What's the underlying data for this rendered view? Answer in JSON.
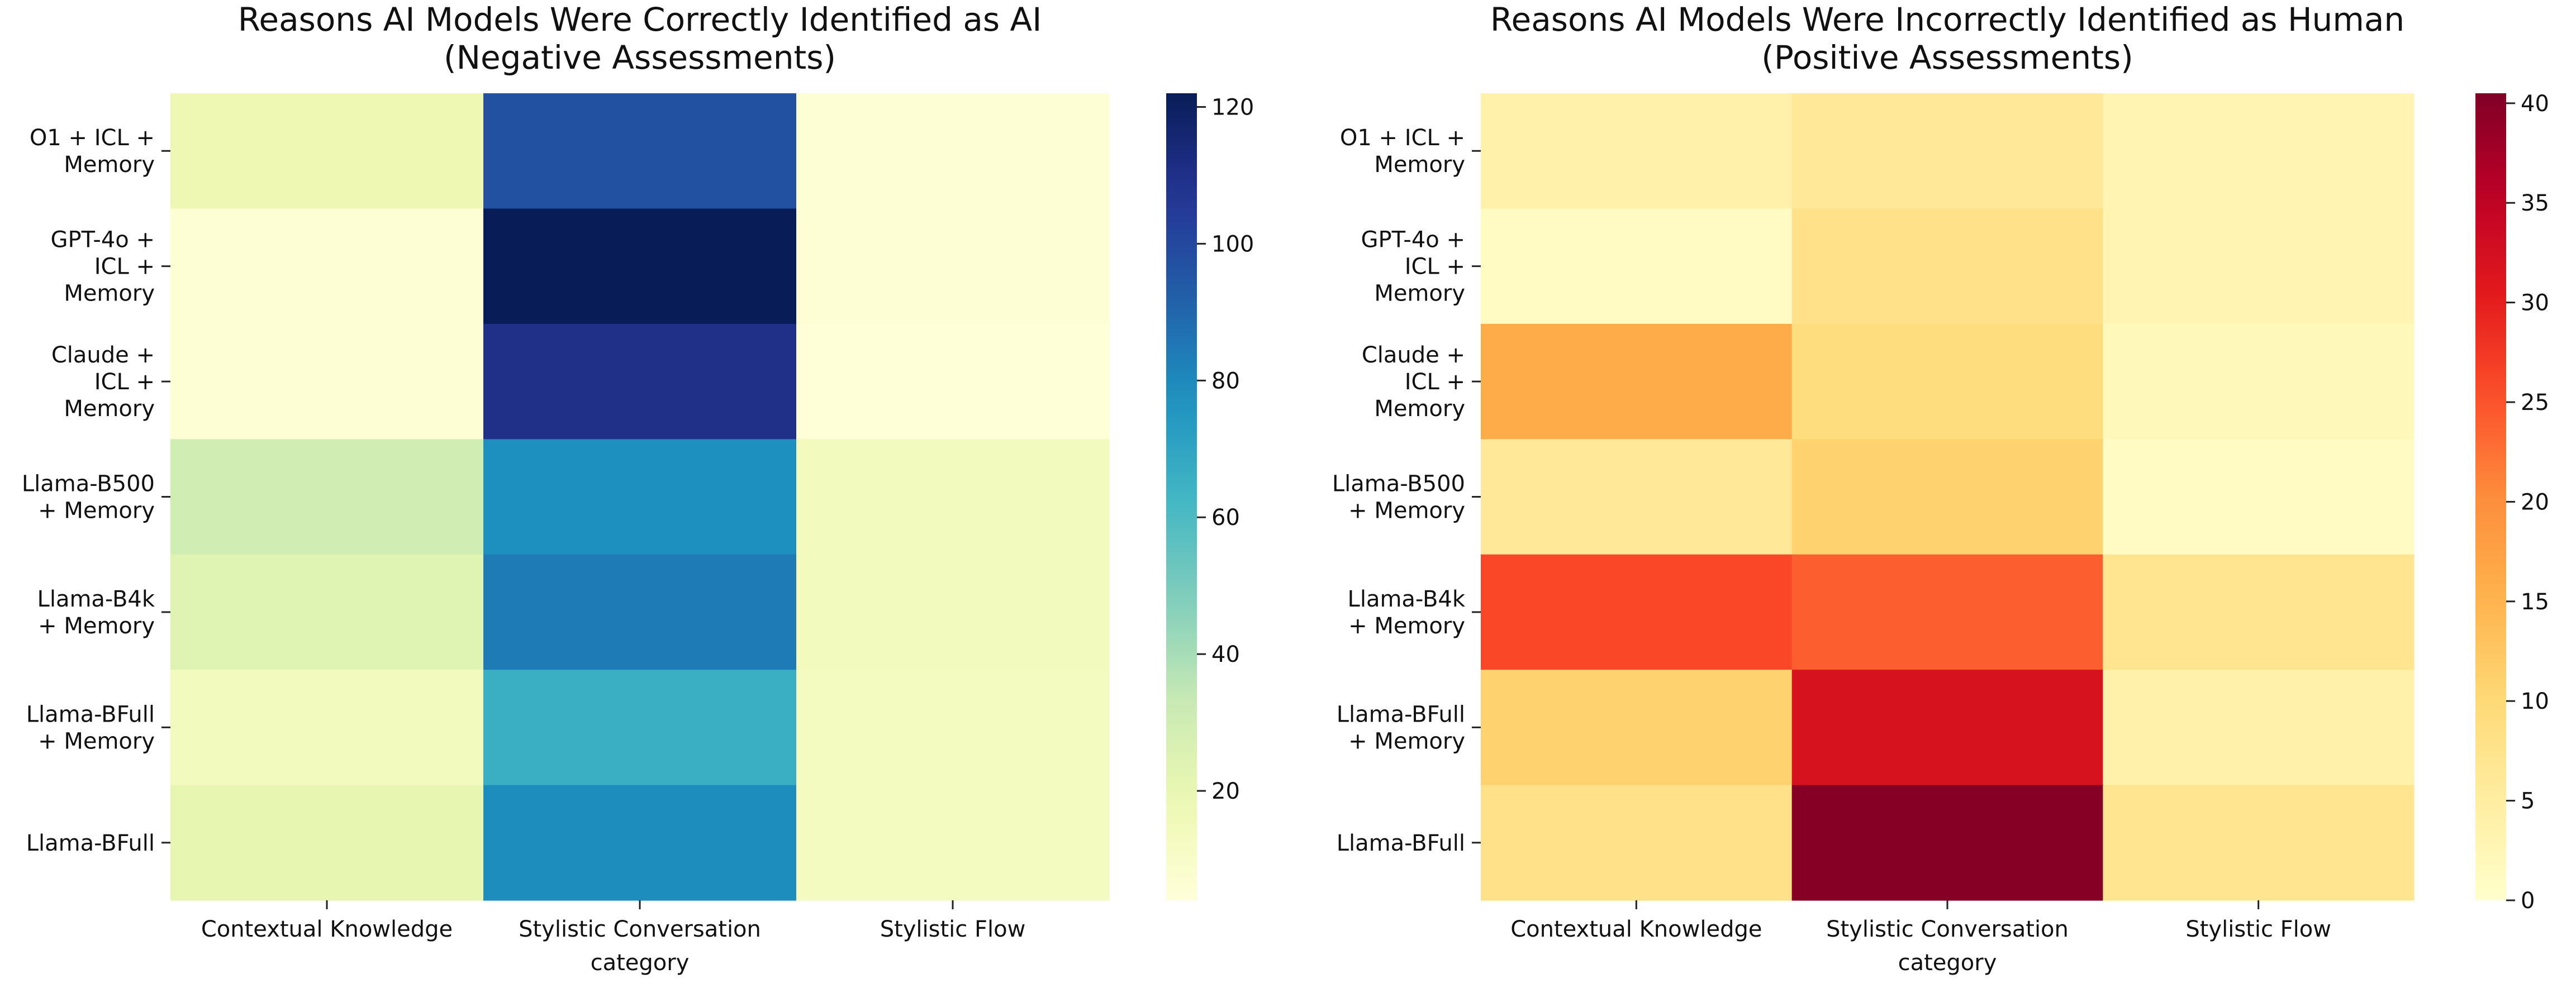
{
  "chart_data": [
    {
      "type": "heatmap",
      "title_lines": [
        "Reasons AI Models Were Correctly Identified as AI",
        "(Negative Assessments)"
      ],
      "xlabel": "category",
      "ylabel": "",
      "categories": [
        "Contextual Knowledge",
        "Stylistic Conversation",
        "Stylistic Flow"
      ],
      "rows": [
        [
          "O1 + ICL +",
          "Memory"
        ],
        [
          "GPT-4o +",
          "ICL +",
          "Memory"
        ],
        [
          "Claude +",
          "ICL +",
          "Memory"
        ],
        [
          "Llama-B500",
          "+ Memory"
        ],
        [
          "Llama-B4k",
          "+ Memory"
        ],
        [
          "Llama-BFull",
          "+ Memory"
        ],
        [
          "Llama-BFull"
        ]
      ],
      "values": [
        [
          18,
          97,
          6
        ],
        [
          6,
          122,
          6
        ],
        [
          6,
          110,
          5
        ],
        [
          30,
          78,
          14
        ],
        [
          24,
          84,
          14
        ],
        [
          14,
          66,
          13
        ],
        [
          21,
          79,
          13
        ]
      ],
      "colormap": "YlGnBu",
      "colorbar": {
        "min": 4,
        "max": 122,
        "ticks": [
          20,
          40,
          60,
          80,
          100,
          120
        ]
      }
    },
    {
      "type": "heatmap",
      "title_lines": [
        "Reasons AI Models Were Incorrectly Identified as Human",
        "(Positive Assessments)"
      ],
      "xlabel": "category",
      "ylabel": "",
      "categories": [
        "Contextual Knowledge",
        "Stylistic Conversation",
        "Stylistic Flow"
      ],
      "rows": [
        [
          "O1 + ICL +",
          "Memory"
        ],
        [
          "GPT-4o +",
          "ICL +",
          "Memory"
        ],
        [
          "Claude +",
          "ICL +",
          "Memory"
        ],
        [
          "Llama-B500",
          "+ Memory"
        ],
        [
          "Llama-B4k",
          "+ Memory"
        ],
        [
          "Llama-BFull",
          "+ Memory"
        ],
        [
          "Llama-BFull"
        ]
      ],
      "values": [
        [
          4,
          6,
          3
        ],
        [
          1,
          8,
          3
        ],
        [
          16,
          9,
          2
        ],
        [
          6,
          11,
          1
        ],
        [
          26,
          24,
          7
        ],
        [
          11,
          32,
          4
        ],
        [
          8,
          40,
          7
        ]
      ],
      "colormap": "YlOrRd",
      "colorbar": {
        "min": 0,
        "max": 40.5,
        "ticks": [
          0,
          5,
          10,
          15,
          20,
          25,
          30,
          35,
          40
        ]
      }
    }
  ]
}
